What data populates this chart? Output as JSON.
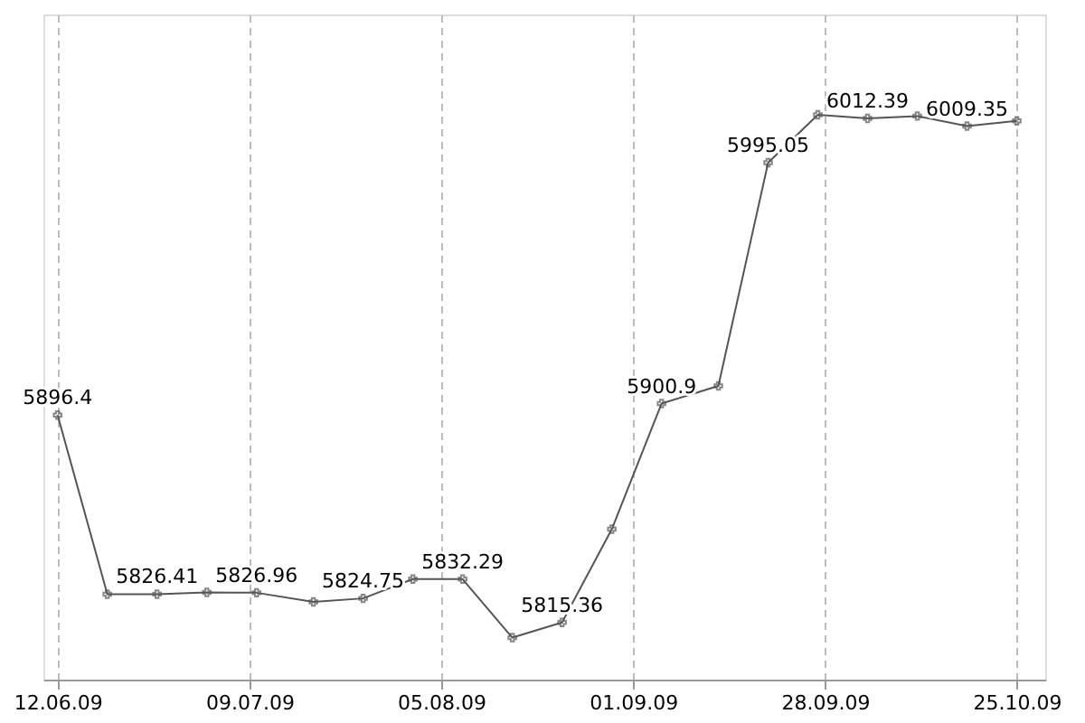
{
  "chart_data": {
    "type": "line",
    "x": [
      "2009-06-12",
      "2009-06-19",
      "2009-06-26",
      "2009-07-03",
      "2009-07-10",
      "2009-07-18",
      "2009-07-25",
      "2009-08-01",
      "2009-08-08",
      "2009-08-15",
      "2009-08-22",
      "2009-08-29",
      "2009-09-05",
      "2009-09-13",
      "2009-09-20",
      "2009-09-27",
      "2009-10-04",
      "2009-10-11",
      "2009-10-18",
      "2009-10-25"
    ],
    "series": [
      {
        "color": "#555555",
        "values": [
          5896.4,
          5826.4,
          5826.41,
          5827.1,
          5826.96,
          5823.4,
          5824.75,
          5832.3,
          5832.29,
          5809.4,
          5815.36,
          5851.8,
          5900.9,
          5907.8,
          5995.05,
          6013.8,
          6012.39,
          6013.3,
          6009.35,
          6011.4
        ],
        "value_labels": [
          "5896.4",
          null,
          "5826.41",
          null,
          "5826.96",
          null,
          "5824.75",
          null,
          "5832.29",
          null,
          "5815.36",
          null,
          "5900.9",
          null,
          "5995.05",
          null,
          "6012.39",
          null,
          "6009.35",
          null
        ]
      }
    ],
    "xlim": [
      "2009-06-10",
      "2009-10-29"
    ],
    "xticks": [
      {
        "value": "2009-06-12",
        "label": "12.06.09"
      },
      {
        "value": "2009-07-09",
        "label": "09.07.09"
      },
      {
        "value": "2009-08-05",
        "label": "05.08.09"
      },
      {
        "value": "2009-09-01",
        "label": "01.09.09"
      },
      {
        "value": "2009-09-28",
        "label": "28.09.09"
      },
      {
        "value": "2009-10-25",
        "label": "25.10.09"
      }
    ],
    "ylim": [
      5793,
      6053
    ],
    "tick_labels": "x",
    "grid": "x",
    "marker": "cross",
    "line_style": "solid"
  }
}
